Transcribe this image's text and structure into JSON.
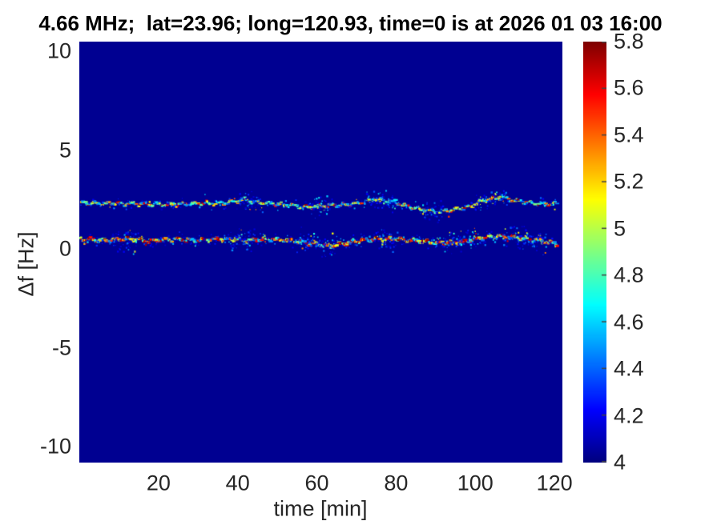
{
  "figure": {
    "title": "4.66 MHz;  lat=23.96; long=120.93, time=0 is at 2026 01 03 16:00"
  },
  "colors": {
    "plot_background": "#00008b",
    "tick_label": "#262626",
    "title": "#000000",
    "colorbar_tick": "#444444"
  },
  "chart_data": {
    "type": "heatmap",
    "title": "4.66 MHz;  lat=23.96; long=120.93, time=0 is at 2026 01 03 16:00",
    "xlabel": "time [min]",
    "ylabel": "Δf [Hz]",
    "xlim": [
      0,
      122
    ],
    "ylim": [
      -10.8,
      10.5
    ],
    "x_ticks": [
      20,
      40,
      60,
      80,
      100,
      120
    ],
    "x_tick_labels": [
      "20",
      "40",
      "60",
      "80",
      "100",
      "120"
    ],
    "y_ticks": [
      10,
      5,
      0,
      -5,
      -10
    ],
    "y_tick_labels": [
      "10",
      "5",
      "0",
      "-5",
      "-10"
    ],
    "colormap": "jet",
    "background_value": 4.03,
    "colorbar": {
      "min": 4,
      "max": 5.8,
      "ticks": [
        4,
        4.2,
        4.4,
        4.6,
        4.8,
        5,
        5.2,
        5.4,
        5.6,
        5.8
      ],
      "tick_labels": [
        "4",
        "4.2",
        "4.4",
        "4.6",
        "4.8",
        "5",
        "5.2",
        "5.4",
        "5.6",
        "5.8"
      ]
    },
    "series": [
      {
        "name": "upper-trace",
        "description": "narrow Doppler trace near +2.3 Hz, mostly blue-cyan-green with sparse red dashes",
        "centerline": [
          [
            0,
            2.35
          ],
          [
            8,
            2.3
          ],
          [
            16,
            2.28
          ],
          [
            24,
            2.25
          ],
          [
            30,
            2.3
          ],
          [
            36,
            2.32
          ],
          [
            41,
            2.5
          ],
          [
            45,
            2.35
          ],
          [
            49,
            2.3
          ],
          [
            53,
            2.22
          ],
          [
            57,
            2.1
          ],
          [
            61,
            2.2
          ],
          [
            66,
            2.25
          ],
          [
            70,
            2.32
          ],
          [
            74,
            2.52
          ],
          [
            78,
            2.45
          ],
          [
            82,
            2.2
          ],
          [
            86,
            2.0
          ],
          [
            90,
            1.9
          ],
          [
            94,
            1.97
          ],
          [
            98,
            2.15
          ],
          [
            102,
            2.5
          ],
          [
            106,
            2.6
          ],
          [
            110,
            2.45
          ],
          [
            114,
            2.32
          ],
          [
            120,
            2.27
          ]
        ],
        "dash_height": 1.9,
        "dash_prob": 0.82,
        "color_bands": [
          [
            4.35,
            4.9,
            0.55
          ],
          [
            4.9,
            5.15,
            0.2
          ],
          [
            5.15,
            5.55,
            0.15
          ],
          [
            5.55,
            5.8,
            0.1
          ]
        ],
        "speckle_base": 0.35,
        "speckle_spread_hz": 0.4,
        "speckle_bursts": [
          [
            40,
            46
          ],
          [
            58,
            64
          ],
          [
            72,
            80
          ],
          [
            86,
            92
          ],
          [
            100,
            108
          ]
        ]
      },
      {
        "name": "lower-trace",
        "description": "strong Doppler trace near +0.45 Hz, red-orange core with cyan-blue speckle",
        "centerline": [
          [
            0,
            0.5
          ],
          [
            6,
            0.45
          ],
          [
            12,
            0.52
          ],
          [
            18,
            0.4
          ],
          [
            24,
            0.5
          ],
          [
            30,
            0.44
          ],
          [
            36,
            0.52
          ],
          [
            42,
            0.45
          ],
          [
            48,
            0.52
          ],
          [
            54,
            0.42
          ],
          [
            58,
            0.3
          ],
          [
            63,
            0.15
          ],
          [
            68,
            0.35
          ],
          [
            74,
            0.5
          ],
          [
            80,
            0.5
          ],
          [
            86,
            0.4
          ],
          [
            90,
            0.3
          ],
          [
            95,
            0.35
          ],
          [
            100,
            0.5
          ],
          [
            105,
            0.65
          ],
          [
            110,
            0.6
          ],
          [
            115,
            0.45
          ],
          [
            120,
            0.3
          ]
        ],
        "dash_height": 2.3,
        "dash_prob": 0.88,
        "color_bands": [
          [
            4.35,
            4.9,
            0.28
          ],
          [
            4.9,
            5.3,
            0.22
          ],
          [
            5.3,
            5.65,
            0.3
          ],
          [
            5.65,
            5.8,
            0.2
          ]
        ],
        "speckle_base": 0.6,
        "speckle_spread_hz": 0.45,
        "speckle_bursts": [
          [
            8,
            14
          ],
          [
            38,
            44
          ],
          [
            55,
            65
          ],
          [
            75,
            80
          ],
          [
            92,
            100
          ],
          [
            107,
            118
          ]
        ]
      }
    ]
  }
}
